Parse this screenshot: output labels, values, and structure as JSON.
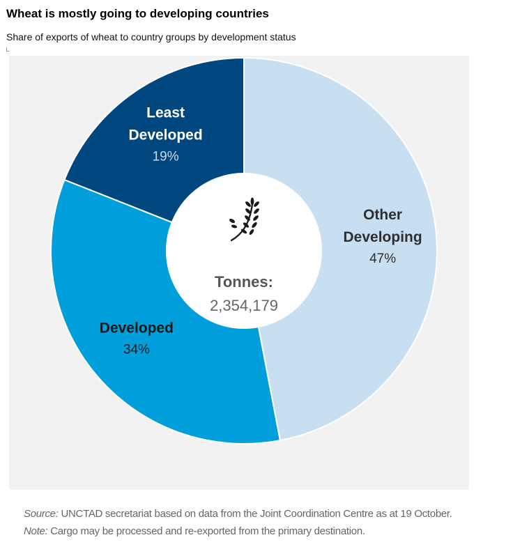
{
  "header": {
    "title": "Wheat is mostly going to developing countries",
    "subtitle": "Share of exports of wheat to country groups by development status"
  },
  "chart_data": {
    "type": "pie",
    "variant": "donut",
    "center": {
      "label": "Tonnes:",
      "value": "2,354,179",
      "icon": "wheat-icon"
    },
    "slices": [
      {
        "name_lines": [
          "Other",
          "Developing"
        ],
        "value": 47,
        "label": "47%",
        "color": "#c7dff0",
        "text_color": "#2e2e2e",
        "pct_color": "#2e2e2e"
      },
      {
        "name_lines": [
          "Developed"
        ],
        "value": 34,
        "label": "34%",
        "color": "#009edb",
        "text_color": "#1a1a1a",
        "pct_color": "#1a1a1a"
      },
      {
        "name_lines": [
          "Least",
          "Developed"
        ],
        "value": 19,
        "label": "19%",
        "color": "#00477f",
        "text_color": "#ffffff",
        "pct_color": "#d0dbe6"
      }
    ],
    "start_angle_deg": 0,
    "direction": "clockwise"
  },
  "footer": {
    "source_label": "Source:",
    "source_text": " UNCTAD secretariat based on data from the Joint Coordination Centre as at 19 October.",
    "note_label": "Note:",
    "note_text": " Cargo may be processed and re-exported from the primary destination."
  }
}
